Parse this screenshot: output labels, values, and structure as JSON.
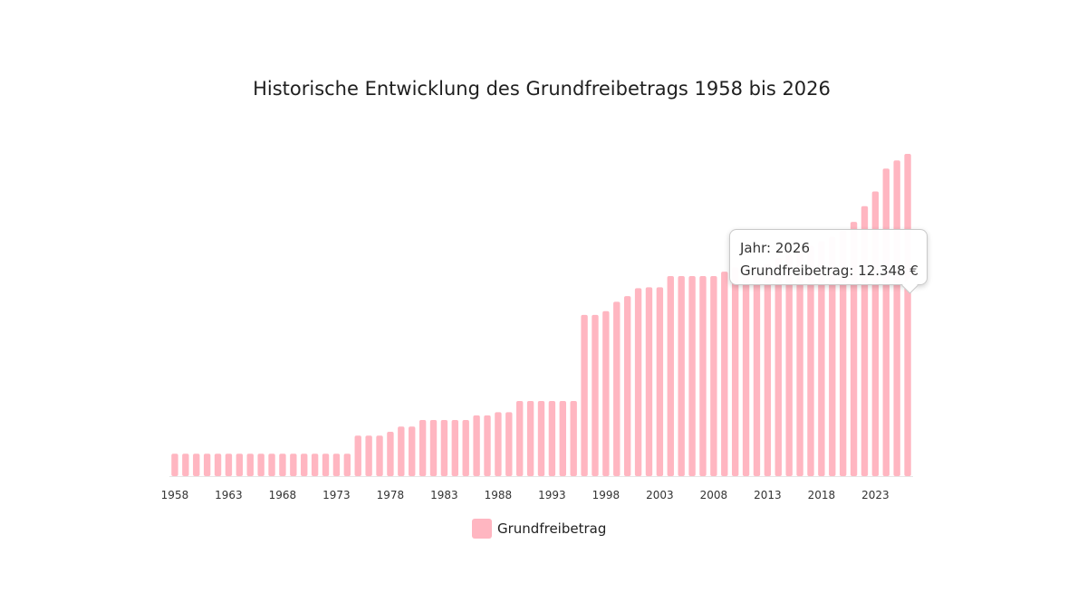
{
  "title": "Historische Entwicklung des Grundfreibetrags 1958 bis 2026",
  "chart_data": {
    "type": "bar",
    "title": "Historische Entwicklung des Grundfreibetrags 1958 bis 2026",
    "xlabel": "",
    "ylabel": "",
    "ylim": [
      0,
      12348
    ],
    "grid": false,
    "legend_position": "bottom",
    "categories": [
      "1958",
      "1959",
      "1960",
      "1961",
      "1962",
      "1963",
      "1964",
      "1965",
      "1966",
      "1967",
      "1968",
      "1969",
      "1970",
      "1971",
      "1972",
      "1973",
      "1974",
      "1975",
      "1976",
      "1977",
      "1978",
      "1979",
      "1980",
      "1981",
      "1982",
      "1983",
      "1984",
      "1985",
      "1986",
      "1987",
      "1988",
      "1989",
      "1990",
      "1991",
      "1992",
      "1993",
      "1994",
      "1995",
      "1996",
      "1997",
      "1998",
      "1999",
      "2000",
      "2001",
      "2002",
      "2003",
      "2004",
      "2005",
      "2006",
      "2007",
      "2008",
      "2009",
      "2010",
      "2011",
      "2012",
      "2013",
      "2014",
      "2015",
      "2016",
      "2017",
      "2018",
      "2019",
      "2020",
      "2021",
      "2022",
      "2023",
      "2024",
      "2025",
      "2026"
    ],
    "x_tick_labels": [
      "1958",
      "1963",
      "1968",
      "1973",
      "1978",
      "1983",
      "1988",
      "1993",
      "1998",
      "2003",
      "2008",
      "2013",
      "2018",
      "2023"
    ],
    "series": [
      {
        "name": "Grundfreibetrag",
        "color": "#ffb6c1",
        "values": [
          860,
          860,
          860,
          860,
          860,
          860,
          860,
          860,
          860,
          860,
          860,
          860,
          860,
          860,
          860,
          860,
          860,
          1550,
          1550,
          1550,
          1700,
          1900,
          1900,
          2150,
          2150,
          2150,
          2150,
          2150,
          2330,
          2330,
          2450,
          2450,
          2880,
          2880,
          2880,
          2880,
          2880,
          2880,
          6180,
          6180,
          6320,
          6680,
          6900,
          7200,
          7235,
          7235,
          7664,
          7664,
          7664,
          7664,
          7664,
          7834,
          8004,
          8004,
          8004,
          8130,
          8354,
          8472,
          8652,
          8820,
          9000,
          9168,
          9408,
          9744,
          10347,
          10908,
          11784,
          12096,
          12348
        ]
      }
    ]
  },
  "tooltip": {
    "year_label": "Jahr: 2026",
    "value_label": "Grundfreibetrag: 12.348 €"
  },
  "legend": {
    "label": "Grundfreibetrag",
    "color": "#ffb6c1"
  }
}
